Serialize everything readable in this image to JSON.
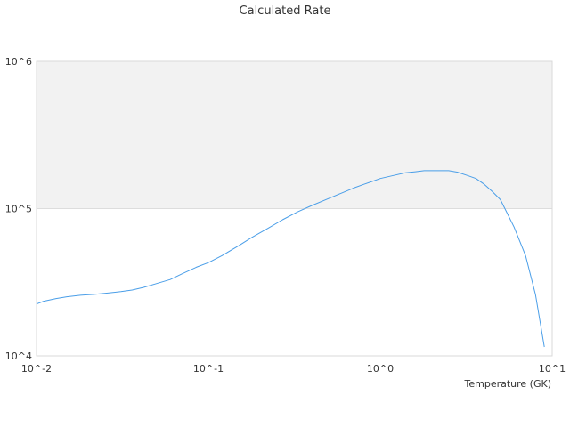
{
  "chart_data": {
    "type": "line",
    "title": "Calculated Rate",
    "xlabel": "Temperature (GK)",
    "ylabel": "",
    "x_scale": "log",
    "y_scale": "log",
    "xlim": [
      0.01,
      10
    ],
    "ylim": [
      10000,
      1000000
    ],
    "x_tick_labels": [
      "10^-2",
      "10^-1",
      "10^0",
      "10^1"
    ],
    "y_tick_labels": [
      "10^4",
      "10^5",
      "10^6"
    ],
    "grid": true,
    "shaded_band": {
      "y_from": 100000,
      "y_to": 1000000,
      "color": "#f2f2f2"
    },
    "series": [
      {
        "color": "#4a9ee8",
        "x": [
          0.01,
          0.011,
          0.013,
          0.015,
          0.018,
          0.022,
          0.026,
          0.031,
          0.036,
          0.042,
          0.05,
          0.06,
          0.07,
          0.085,
          0.1,
          0.12,
          0.15,
          0.18,
          0.22,
          0.27,
          0.33,
          0.4,
          0.5,
          0.6,
          0.7,
          0.8,
          0.9,
          1.0,
          1.2,
          1.4,
          1.6,
          1.8,
          2.0,
          2.5,
          2.8,
          3.2,
          3.6,
          4.0,
          4.5,
          5.0,
          5.5,
          6.0,
          7.0,
          8.0,
          9.0
        ],
        "y": [
          22500,
          23500,
          24500,
          25200,
          25800,
          26200,
          26700,
          27300,
          28000,
          29200,
          31000,
          33000,
          36000,
          40000,
          43000,
          48000,
          56000,
          64000,
          73000,
          84000,
          95000,
          105000,
          117000,
          128000,
          138000,
          146000,
          153000,
          160000,
          168000,
          175000,
          178000,
          181000,
          181000,
          181000,
          177000,
          168000,
          160000,
          147000,
          130000,
          115000,
          92000,
          75000,
          48000,
          26000,
          11500
        ]
      }
    ]
  }
}
